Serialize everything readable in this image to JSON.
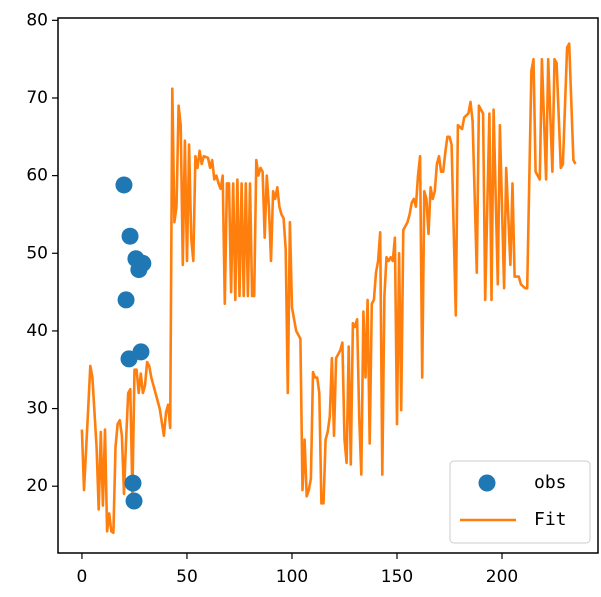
{
  "chart_data": {
    "type": "line",
    "xlim": [
      -11.4,
      245.7
    ],
    "ylim": [
      11.4,
      80.3
    ],
    "xticks": [
      0,
      50,
      100,
      150,
      200
    ],
    "yticks": [
      20,
      30,
      40,
      50,
      60,
      70,
      80
    ],
    "legend": "lower right",
    "series": [
      {
        "name": "obs",
        "type": "scatter",
        "color": "#1f77b4",
        "x": [
          20,
          22.9,
          25.7,
          29,
          27.1,
          21,
          22.4,
          28.1,
          24.3,
          24.8
        ],
        "values": [
          58.8,
          52.2,
          49.3,
          48.7,
          47.9,
          44.0,
          36.4,
          37.3,
          20.4,
          18.1
        ]
      },
      {
        "name": "Fit",
        "type": "line",
        "color": "#ff7f0e",
        "x": [
          0,
          1,
          3,
          4,
          5,
          7,
          8,
          9,
          10,
          11,
          12,
          13,
          14,
          15,
          16,
          17,
          18,
          19,
          20,
          21,
          22,
          23,
          24,
          25,
          26,
          27,
          28,
          29,
          30,
          31,
          32,
          33,
          34,
          35,
          37,
          39,
          40,
          41,
          42,
          43,
          44,
          45,
          46,
          47,
          48,
          49,
          50,
          51,
          52,
          53,
          54,
          55,
          56,
          57,
          58,
          60,
          61,
          62,
          63,
          64,
          65,
          66,
          67,
          68,
          69,
          70,
          71,
          72,
          73,
          74,
          75,
          76,
          77,
          78,
          79,
          80,
          81,
          82,
          83,
          84,
          85,
          86,
          87,
          88,
          89,
          90,
          91,
          92,
          93,
          94,
          95,
          96,
          97,
          98,
          99,
          100,
          101,
          102,
          104,
          105,
          106,
          107,
          108,
          109,
          110,
          111,
          112,
          113,
          114,
          115,
          116,
          117,
          118,
          119,
          120,
          121,
          122,
          123,
          124,
          125,
          126,
          127,
          128,
          129,
          130,
          131,
          132,
          133,
          134,
          135,
          136,
          137,
          138,
          139,
          140,
          141,
          142,
          143,
          144,
          145,
          146,
          147,
          148,
          149,
          150,
          151,
          152,
          153,
          154,
          155,
          156,
          157,
          158,
          159,
          160,
          161,
          162,
          163,
          164,
          165,
          166,
          167,
          168,
          169,
          170,
          171,
          172,
          173,
          174,
          175,
          176,
          178,
          179,
          181,
          182,
          184,
          185,
          186,
          188,
          189,
          191,
          192,
          194,
          195,
          196,
          198,
          199,
          201,
          202,
          204,
          205,
          206,
          208,
          209,
          211,
          212,
          214,
          215,
          216,
          218,
          219,
          221,
          222,
          224,
          225,
          226,
          228,
          229,
          231,
          232,
          234,
          235
        ],
        "values": [
          27.3,
          19.5,
          30,
          35.5,
          34,
          25,
          17,
          27,
          17.5,
          27.3,
          14.2,
          16.5,
          14.2,
          14,
          25,
          28,
          28.5,
          26.5,
          19,
          26,
          32,
          32.5,
          19,
          35,
          35,
          32,
          34.5,
          32,
          33,
          36,
          35.5,
          34,
          33,
          32,
          30,
          26.5,
          29.5,
          30.5,
          27.5,
          71.2,
          54,
          56,
          69,
          66.5,
          48.5,
          64.5,
          49,
          64,
          52,
          49,
          62.5,
          61,
          63.2,
          61.5,
          62.5,
          62.3,
          61,
          62,
          59.5,
          60,
          59,
          58.3,
          60,
          43.5,
          59,
          59,
          45,
          59,
          44,
          59.5,
          44.5,
          59,
          44.5,
          59,
          44.5,
          59,
          44.5,
          44.5,
          62,
          60,
          61,
          60.5,
          52,
          60,
          56,
          49,
          58,
          57,
          58.5,
          56,
          55,
          54.5,
          50.5,
          32,
          54,
          43,
          41.5,
          40,
          39,
          19.5,
          26,
          18.7,
          19.5,
          21,
          34.7,
          34,
          34,
          32,
          17.8,
          17.8,
          26,
          27,
          29,
          36.5,
          26.5,
          36.5,
          37,
          37.5,
          38.5,
          26,
          23,
          38,
          22.8,
          41,
          40.5,
          41.5,
          29,
          21.5,
          42.5,
          34,
          44,
          25.5,
          43.5,
          44,
          47.5,
          49,
          52.7,
          21.5,
          44.5,
          49.5,
          49,
          49.5,
          49,
          52,
          28,
          50,
          29.8,
          53,
          53.5,
          54,
          55,
          56.5,
          57,
          56,
          60,
          62.5,
          34,
          58,
          57,
          52.5,
          58.5,
          57,
          58,
          61.5,
          62.5,
          60.5,
          60.5,
          63,
          65,
          65,
          64,
          42,
          66.5,
          66,
          67.5,
          68,
          69.5,
          67,
          47.5,
          69,
          68,
          44,
          68,
          44,
          68.5,
          46,
          66.5,
          45.5,
          61,
          48.5,
          59,
          47,
          47,
          46,
          45.5,
          45.5,
          73.5,
          75,
          60.5,
          59.5,
          75,
          59.5,
          75,
          60.5,
          75,
          74.5,
          61,
          61.5,
          76.5,
          77,
          62,
          61.5
        ]
      }
    ]
  }
}
